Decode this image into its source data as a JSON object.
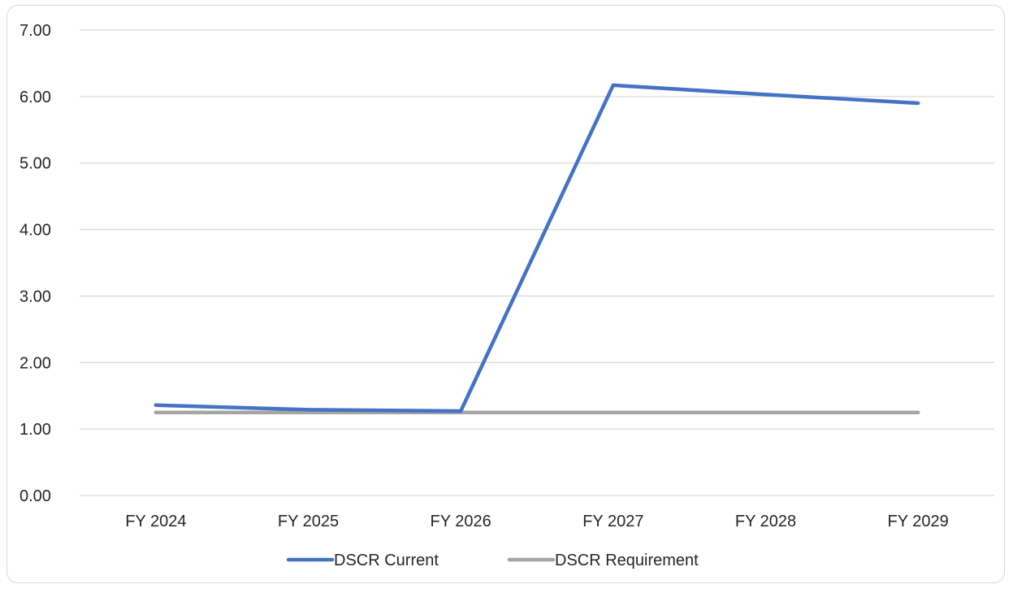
{
  "chart_data": {
    "type": "line",
    "title": "",
    "xlabel": "",
    "ylabel": "",
    "categories": [
      "FY 2024",
      "FY 2025",
      "FY 2026",
      "FY 2027",
      "FY 2028",
      "FY 2029"
    ],
    "series": [
      {
        "name": "DSCR Current",
        "color": "#4472c4",
        "values": [
          1.36,
          1.29,
          1.27,
          6.17,
          6.03,
          5.9
        ]
      },
      {
        "name": "DSCR Requirement",
        "color": "#a5a5a5",
        "values": [
          1.25,
          1.25,
          1.25,
          1.25,
          1.25,
          1.25
        ]
      }
    ],
    "ylim": [
      0,
      7
    ],
    "yticks": [
      "0.00",
      "1.00",
      "2.00",
      "3.00",
      "4.00",
      "5.00",
      "6.00",
      "7.00"
    ],
    "grid": true,
    "legend_position": "bottom"
  }
}
